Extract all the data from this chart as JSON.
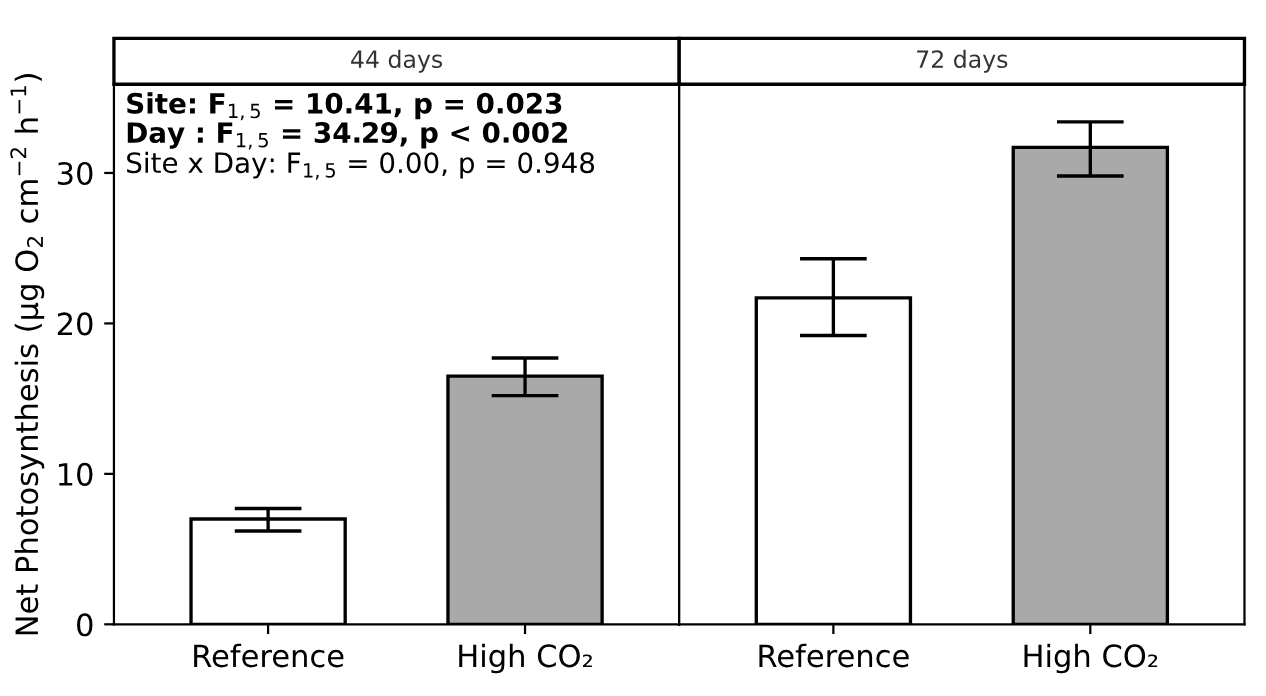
{
  "chart_data": [
    {
      "type": "bar",
      "title": "44 days",
      "ylabel": "Net Photosynthesis (µg O$_{2}$ cm$^{−2}$ h$^{−1}$)",
      "categories": [
        "Reference",
        "High CO₂"
      ],
      "values": [
        7.0,
        16.5
      ],
      "colors": [
        "#ffffff",
        "#a9a9a9"
      ],
      "errors": [
        [
          6.2,
          7.7
        ],
        [
          15.2,
          17.7
        ]
      ],
      "ylim": [
        0,
        35.9
      ],
      "yticks": [
        0,
        10,
        20,
        30
      ],
      "grid": false,
      "annotations": [
        "Site: F$_{1,5}$ = 10.41, p = 0.023",
        "Day : F$_{1,5}$ = 34.29, p < 0.002",
        "Site x Day: F$_{1,5}$ = 0.00, p = 0.948"
      ]
    },
    {
      "type": "bar",
      "title": "72 days",
      "categories": [
        "Reference",
        "High CO₂"
      ],
      "values": [
        21.7,
        31.7
      ],
      "colors": [
        "#ffffff",
        "#a9a9a9"
      ],
      "errors": [
        [
          19.2,
          24.3
        ],
        [
          29.8,
          33.4
        ]
      ],
      "ylim": [
        0,
        35.9
      ],
      "yticks": [
        0,
        10,
        20,
        30
      ],
      "grid": false,
      "tick_labels": "x"
    }
  ]
}
